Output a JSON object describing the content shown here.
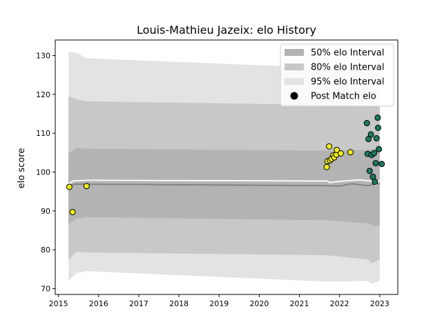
{
  "chart_data": {
    "type": "scatter",
    "title": "Louis-Mathieu Jazeix: elo History",
    "xlabel": "",
    "ylabel": "elo score",
    "xlim": [
      2014.92,
      2023.45
    ],
    "ylim": [
      68.5,
      134.0
    ],
    "x_ticks": [
      2015,
      2016,
      2017,
      2018,
      2019,
      2020,
      2021,
      2022,
      2023
    ],
    "y_ticks": [
      70,
      80,
      90,
      100,
      110,
      120,
      130
    ],
    "legend": {
      "placement": "top-right",
      "entries": [
        {
          "label": "50% elo Interval",
          "color": "#b3b3b3"
        },
        {
          "label": "80% elo Interval",
          "color": "#c8c8c8"
        },
        {
          "label": "95% elo Interval",
          "color": "#e3e3e3"
        },
        {
          "label": "Post Match elo",
          "color": "#000000"
        }
      ]
    },
    "bands": [
      {
        "name": "95% elo Interval",
        "color": "#e3e3e3",
        "upper": [
          [
            2015.25,
            131.0
          ],
          [
            2015.45,
            130.7
          ],
          [
            2015.7,
            129.3
          ],
          [
            2021.7,
            126.8
          ],
          [
            2023.0,
            126.3
          ]
        ],
        "lower": [
          [
            2015.25,
            72.0
          ],
          [
            2015.45,
            74.0
          ],
          [
            2015.7,
            74.5
          ],
          [
            2021.7,
            71.8
          ],
          [
            2022.7,
            72.0
          ],
          [
            2022.8,
            71.2
          ],
          [
            2023.0,
            72.0
          ]
        ]
      },
      {
        "name": "80% elo Interval",
        "color": "#c8c8c8",
        "upper": [
          [
            2015.25,
            119.5
          ],
          [
            2015.45,
            118.8
          ],
          [
            2015.7,
            118.2
          ],
          [
            2021.7,
            117.3
          ],
          [
            2023.0,
            117.0
          ]
        ],
        "lower": [
          [
            2015.25,
            77.5
          ],
          [
            2015.45,
            79.5
          ],
          [
            2015.7,
            79.3
          ],
          [
            2021.7,
            78.6
          ],
          [
            2022.7,
            77.5
          ],
          [
            2022.8,
            76.5
          ],
          [
            2023.0,
            77.5
          ]
        ]
      },
      {
        "name": "50% elo Interval",
        "color": "#b3b3b3",
        "upper": [
          [
            2015.25,
            104.8
          ],
          [
            2015.45,
            106.3
          ],
          [
            2015.7,
            106.0
          ],
          [
            2021.7,
            105.5
          ],
          [
            2023.0,
            105.7
          ]
        ],
        "lower": [
          [
            2015.25,
            86.5
          ],
          [
            2015.45,
            88.0
          ],
          [
            2015.7,
            88.4
          ],
          [
            2021.7,
            87.6
          ],
          [
            2022.7,
            86.8
          ],
          [
            2022.9,
            86.0
          ],
          [
            2023.0,
            86.5
          ]
        ]
      }
    ],
    "series": [
      {
        "name": "mean line",
        "color": "#808080",
        "points": [
          [
            2015.25,
            96.2
          ],
          [
            2015.4,
            96.9
          ],
          [
            2021.7,
            96.5
          ],
          [
            2022.0,
            96.4
          ],
          [
            2022.3,
            97.0
          ],
          [
            2022.7,
            96.5
          ],
          [
            2023.0,
            97.0
          ]
        ]
      },
      {
        "name": "rating line",
        "color": "#ffffff",
        "points": [
          [
            2015.25,
            96.8
          ],
          [
            2015.35,
            97.7
          ],
          [
            2015.7,
            97.9
          ],
          [
            2021.7,
            97.7
          ],
          [
            2021.75,
            97.3
          ],
          [
            2022.0,
            97.6
          ],
          [
            2022.5,
            98.0
          ],
          [
            2022.75,
            97.7
          ],
          [
            2022.85,
            97.5
          ],
          [
            2022.9,
            96.7
          ],
          [
            2023.0,
            98.0
          ]
        ]
      }
    ],
    "post_match_points": [
      {
        "x": 2015.27,
        "y": 96.2,
        "color": "#f2ee1c"
      },
      {
        "x": 2015.35,
        "y": 89.7,
        "color": "#f2ee1c"
      },
      {
        "x": 2015.7,
        "y": 96.4,
        "color": "#f2ee1c"
      },
      {
        "x": 2021.68,
        "y": 101.3,
        "color": "#f2ee1c"
      },
      {
        "x": 2021.7,
        "y": 102.8,
        "color": "#f2ee1c"
      },
      {
        "x": 2021.74,
        "y": 106.6,
        "color": "#f2ee1c"
      },
      {
        "x": 2021.76,
        "y": 103.0,
        "color": "#f2ee1c"
      },
      {
        "x": 2021.8,
        "y": 103.4,
        "color": "#f2ee1c"
      },
      {
        "x": 2021.84,
        "y": 104.3,
        "color": "#f2ee1c"
      },
      {
        "x": 2021.87,
        "y": 103.8,
        "color": "#f2ee1c"
      },
      {
        "x": 2021.92,
        "y": 104.5,
        "color": "#f2ee1c"
      },
      {
        "x": 2021.93,
        "y": 105.7,
        "color": "#f2ee1c"
      },
      {
        "x": 2022.03,
        "y": 104.8,
        "color": "#f2ee1c"
      },
      {
        "x": 2022.27,
        "y": 105.1,
        "color": "#f2ee1c"
      },
      {
        "x": 2022.68,
        "y": 112.6,
        "color": "#1b7a60"
      },
      {
        "x": 2022.7,
        "y": 104.7,
        "color": "#1b7a60"
      },
      {
        "x": 2022.72,
        "y": 108.5,
        "color": "#1b7a60"
      },
      {
        "x": 2022.75,
        "y": 100.3,
        "color": "#1b7a60"
      },
      {
        "x": 2022.78,
        "y": 109.7,
        "color": "#1b7a60"
      },
      {
        "x": 2022.8,
        "y": 104.4,
        "color": "#1b7a60"
      },
      {
        "x": 2022.83,
        "y": 98.8,
        "color": "#1b7a60"
      },
      {
        "x": 2022.86,
        "y": 104.9,
        "color": "#1b7a60"
      },
      {
        "x": 2022.88,
        "y": 97.5,
        "color": "#1b7a60"
      },
      {
        "x": 2022.9,
        "y": 102.3,
        "color": "#1b7a60"
      },
      {
        "x": 2022.92,
        "y": 108.7,
        "color": "#1b7a60"
      },
      {
        "x": 2022.95,
        "y": 114.0,
        "color": "#1b7a60"
      },
      {
        "x": 2022.96,
        "y": 111.4,
        "color": "#1b7a60"
      },
      {
        "x": 2022.98,
        "y": 105.9,
        "color": "#1b7a60"
      },
      {
        "x": 2023.05,
        "y": 102.1,
        "color": "#1b7a60"
      }
    ],
    "grid": false
  }
}
